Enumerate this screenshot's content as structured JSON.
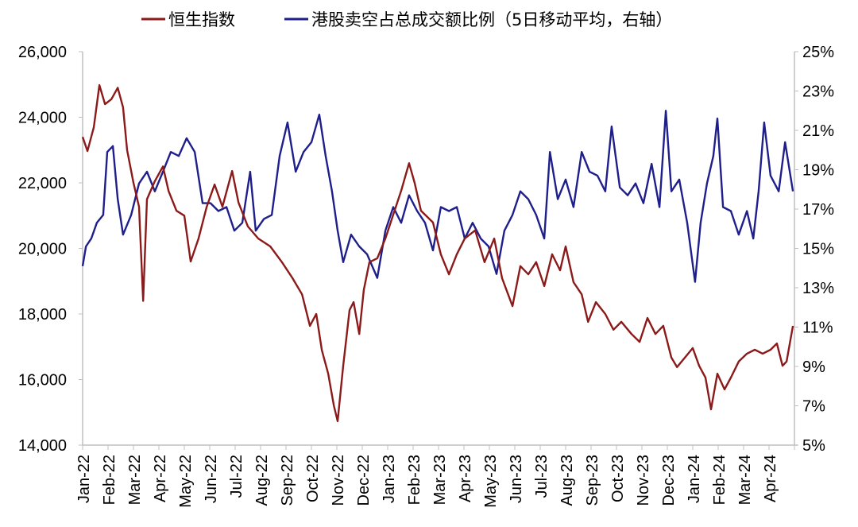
{
  "chart_data": {
    "type": "line",
    "title": "",
    "legend": {
      "placement": "top",
      "entries": [
        "恒生指数",
        "港股卖空占总成交额比例（5日移动平均，右轴）"
      ]
    },
    "x_unit": "months since Jan-22",
    "x_tick_labels": [
      "Jan-22",
      "Feb-22",
      "Mar-22",
      "Apr-22",
      "May-22",
      "Jun-22",
      "Jul-22",
      "Aug-22",
      "Sep-22",
      "Oct-22",
      "Nov-22",
      "Dec-22",
      "Jan-23",
      "Feb-23",
      "Mar-23",
      "Apr-23",
      "May-23",
      "Jun-23",
      "Jul-23",
      "Aug-23",
      "Sep-23",
      "Oct-23",
      "Nov-23",
      "Dec-23",
      "Jan-24",
      "Feb-24",
      "Mar-24",
      "Apr-24"
    ],
    "xlim": [
      0,
      28
    ],
    "y_left": {
      "ylim": [
        14000,
        26000
      ],
      "ticks": [
        14000,
        16000,
        18000,
        20000,
        22000,
        24000,
        26000
      ],
      "tick_labels": [
        "14,000",
        "16,000",
        "18,000",
        "20,000",
        "22,000",
        "24,000",
        "26,000"
      ]
    },
    "y_right": {
      "ylim": [
        5,
        25
      ],
      "ticks": [
        5,
        7,
        9,
        11,
        13,
        15,
        17,
        19,
        21,
        23,
        25
      ],
      "tick_labels": [
        "5%",
        "7%",
        "9%",
        "11%",
        "13%",
        "15%",
        "17%",
        "19%",
        "21%",
        "23%",
        "25%"
      ]
    },
    "grid": false,
    "series": [
      {
        "name": "恒生指数",
        "axis": "left",
        "color": "#8B1A1A",
        "points": [
          [
            0,
            23400
          ],
          [
            0.19,
            22970
          ],
          [
            0.44,
            23700
          ],
          [
            0.66,
            24980
          ],
          [
            0.88,
            24400
          ],
          [
            1.13,
            24550
          ],
          [
            1.38,
            24900
          ],
          [
            1.59,
            24300
          ],
          [
            1.75,
            23000
          ],
          [
            2,
            22000
          ],
          [
            2.22,
            21270
          ],
          [
            2.38,
            18400
          ],
          [
            2.53,
            21500
          ],
          [
            2.84,
            22050
          ],
          [
            3.16,
            22500
          ],
          [
            3.38,
            21750
          ],
          [
            3.69,
            21150
          ],
          [
            4,
            21000
          ],
          [
            4.25,
            19600
          ],
          [
            4.56,
            20300
          ],
          [
            4.88,
            21270
          ],
          [
            5.19,
            21950
          ],
          [
            5.5,
            21270
          ],
          [
            5.88,
            22360
          ],
          [
            6.13,
            21400
          ],
          [
            6.5,
            20670
          ],
          [
            6.91,
            20300
          ],
          [
            7.38,
            20060
          ],
          [
            7.84,
            19580
          ],
          [
            8.25,
            19100
          ],
          [
            8.63,
            18600
          ],
          [
            8.94,
            17640
          ],
          [
            9.19,
            18000
          ],
          [
            9.41,
            16900
          ],
          [
            9.66,
            16180
          ],
          [
            9.88,
            15210
          ],
          [
            10.03,
            14730
          ],
          [
            10.25,
            16420
          ],
          [
            10.5,
            18120
          ],
          [
            10.66,
            18360
          ],
          [
            10.88,
            17390
          ],
          [
            11.06,
            18730
          ],
          [
            11.28,
            19580
          ],
          [
            11.59,
            19700
          ],
          [
            11.91,
            20300
          ],
          [
            12.22,
            21030
          ],
          [
            12.53,
            21760
          ],
          [
            12.84,
            22600
          ],
          [
            13.06,
            22000
          ],
          [
            13.31,
            21150
          ],
          [
            13.78,
            20790
          ],
          [
            14.09,
            19820
          ],
          [
            14.41,
            19210
          ],
          [
            14.72,
            19820
          ],
          [
            15.03,
            20300
          ],
          [
            15.44,
            20550
          ],
          [
            15.81,
            19580
          ],
          [
            16.19,
            20300
          ],
          [
            16.5,
            19090
          ],
          [
            16.91,
            18240
          ],
          [
            17.22,
            19460
          ],
          [
            17.53,
            19210
          ],
          [
            17.84,
            19580
          ],
          [
            18.16,
            18850
          ],
          [
            18.47,
            19820
          ],
          [
            18.78,
            19330
          ],
          [
            19,
            20060
          ],
          [
            19.31,
            18970
          ],
          [
            19.63,
            18600
          ],
          [
            19.88,
            17760
          ],
          [
            20.19,
            18360
          ],
          [
            20.56,
            18000
          ],
          [
            20.88,
            17520
          ],
          [
            21.19,
            17760
          ],
          [
            21.59,
            17390
          ],
          [
            21.91,
            17150
          ],
          [
            22.22,
            17880
          ],
          [
            22.53,
            17390
          ],
          [
            22.84,
            17640
          ],
          [
            23.16,
            16670
          ],
          [
            23.38,
            16380
          ],
          [
            23.69,
            16670
          ],
          [
            24,
            16960
          ],
          [
            24.25,
            16420
          ],
          [
            24.5,
            16060
          ],
          [
            24.72,
            15090
          ],
          [
            24.97,
            16180
          ],
          [
            25.25,
            15700
          ],
          [
            25.5,
            16060
          ],
          [
            25.81,
            16550
          ],
          [
            26.13,
            16790
          ],
          [
            26.44,
            16910
          ],
          [
            26.75,
            16790
          ],
          [
            27.06,
            16910
          ],
          [
            27.31,
            17100
          ],
          [
            27.53,
            16420
          ],
          [
            27.69,
            16550
          ],
          [
            27.94,
            17640
          ]
        ]
      },
      {
        "name": "港股卖空占总成交额比例（5日移动平均，右轴）",
        "axis": "right",
        "color": "#1F1F8C",
        "points": [
          [
            0,
            14.1
          ],
          [
            0.13,
            15.1
          ],
          [
            0.34,
            15.5
          ],
          [
            0.56,
            16.3
          ],
          [
            0.81,
            16.7
          ],
          [
            0.97,
            19.9
          ],
          [
            1.19,
            20.2
          ],
          [
            1.38,
            17.5
          ],
          [
            1.59,
            15.7
          ],
          [
            1.91,
            16.7
          ],
          [
            2.22,
            18.3
          ],
          [
            2.53,
            18.9
          ],
          [
            2.84,
            17.9
          ],
          [
            3.16,
            18.9
          ],
          [
            3.47,
            19.9
          ],
          [
            3.78,
            19.7
          ],
          [
            4.09,
            20.6
          ],
          [
            4.41,
            19.9
          ],
          [
            4.72,
            17.3
          ],
          [
            5.03,
            17.3
          ],
          [
            5.34,
            16.9
          ],
          [
            5.66,
            17.1
          ],
          [
            5.97,
            15.9
          ],
          [
            6.28,
            16.3
          ],
          [
            6.59,
            18.9
          ],
          [
            6.81,
            15.9
          ],
          [
            7.13,
            16.5
          ],
          [
            7.44,
            16.7
          ],
          [
            7.75,
            19.7
          ],
          [
            8.06,
            21.4
          ],
          [
            8.38,
            18.9
          ],
          [
            8.69,
            19.9
          ],
          [
            9,
            20.4
          ],
          [
            9.31,
            21.8
          ],
          [
            9.56,
            19.7
          ],
          [
            9.81,
            17.9
          ],
          [
            10.03,
            15.9
          ],
          [
            10.25,
            14.3
          ],
          [
            10.56,
            15.7
          ],
          [
            10.88,
            15.1
          ],
          [
            11.19,
            14.7
          ],
          [
            11.59,
            13.5
          ],
          [
            11.91,
            15.9
          ],
          [
            12.22,
            17.1
          ],
          [
            12.53,
            16.3
          ],
          [
            12.84,
            17.7
          ],
          [
            13.16,
            16.9
          ],
          [
            13.47,
            16.3
          ],
          [
            13.78,
            14.9
          ],
          [
            14.09,
            17.1
          ],
          [
            14.41,
            16.9
          ],
          [
            14.72,
            17.1
          ],
          [
            15.03,
            15.5
          ],
          [
            15.34,
            16.3
          ],
          [
            15.66,
            15.5
          ],
          [
            15.97,
            15.1
          ],
          [
            16.28,
            13.7
          ],
          [
            16.59,
            15.9
          ],
          [
            16.91,
            16.7
          ],
          [
            17.22,
            17.9
          ],
          [
            17.53,
            17.5
          ],
          [
            17.84,
            16.7
          ],
          [
            18.16,
            15.5
          ],
          [
            18.38,
            19.9
          ],
          [
            18.69,
            17.5
          ],
          [
            19,
            18.5
          ],
          [
            19.31,
            17.1
          ],
          [
            19.63,
            19.9
          ],
          [
            19.94,
            18.9
          ],
          [
            20.25,
            18.7
          ],
          [
            20.56,
            17.9
          ],
          [
            20.81,
            21.2
          ],
          [
            21.13,
            18.1
          ],
          [
            21.44,
            17.7
          ],
          [
            21.75,
            18.3
          ],
          [
            22.06,
            17.3
          ],
          [
            22.38,
            19.3
          ],
          [
            22.69,
            17.1
          ],
          [
            22.94,
            22.0
          ],
          [
            23.16,
            17.9
          ],
          [
            23.47,
            18.5
          ],
          [
            23.78,
            16.3
          ],
          [
            24.09,
            13.3
          ],
          [
            24.31,
            16.3
          ],
          [
            24.56,
            18.3
          ],
          [
            24.81,
            19.7
          ],
          [
            24.97,
            21.6
          ],
          [
            25.19,
            17.1
          ],
          [
            25.5,
            16.9
          ],
          [
            25.81,
            15.7
          ],
          [
            26.13,
            16.9
          ],
          [
            26.38,
            15.5
          ],
          [
            26.59,
            17.9
          ],
          [
            26.81,
            21.4
          ],
          [
            27.06,
            18.7
          ],
          [
            27.38,
            17.9
          ],
          [
            27.63,
            20.4
          ],
          [
            27.94,
            17.9
          ]
        ]
      }
    ]
  }
}
